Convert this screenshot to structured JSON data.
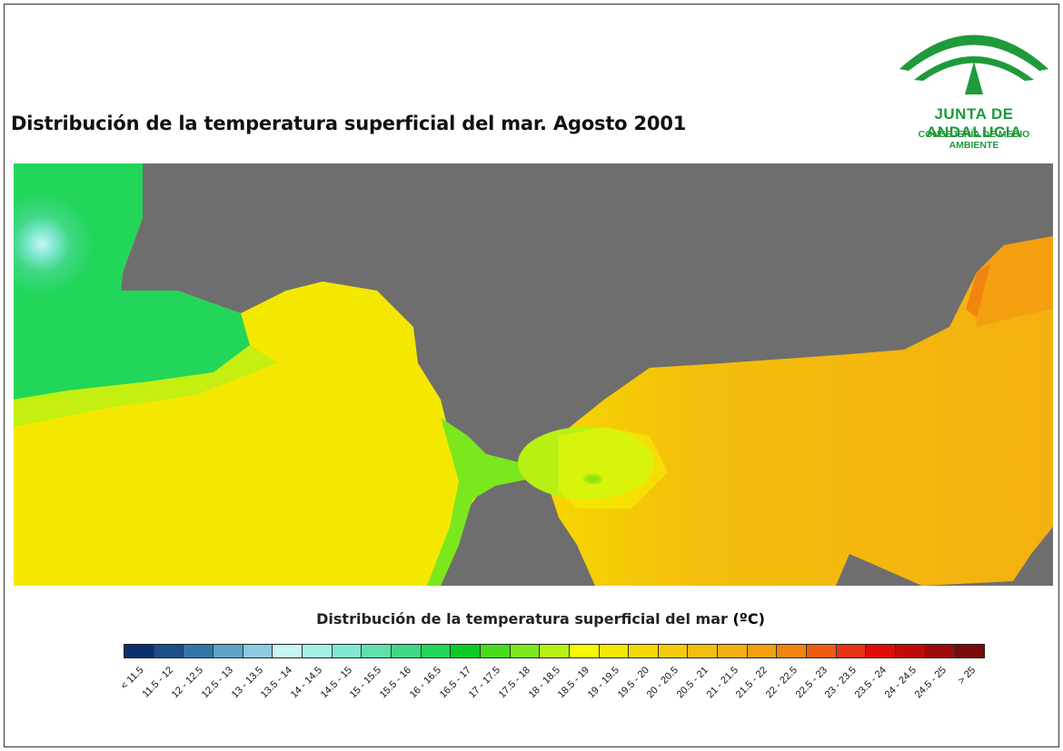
{
  "title": "Distribución de la temperatura superficial del mar. Agosto 2001",
  "logo": {
    "name": "JUNTA DE ANDALUCIA",
    "subtitle": "CONSEJERÍA DE MEDIO AMBIENTE",
    "color": "#1f9a3a"
  },
  "map": {
    "land_color": "#6e6e6e"
  },
  "legend": {
    "title": "Distribución de la temperatura superficial del mar",
    "unit": "(ºC)",
    "classes": [
      {
        "label": "< 11.5",
        "color": "#0b2f6b"
      },
      {
        "label": "11.5 - 12",
        "color": "#1a4f8a"
      },
      {
        "label": "12 - 12.5",
        "color": "#2f77a8"
      },
      {
        "label": "12.5 - 13",
        "color": "#5fa3c9"
      },
      {
        "label": "13 - 13.5",
        "color": "#8ccbe0"
      },
      {
        "label": "13.5 - 14",
        "color": "#c5f5f7"
      },
      {
        "label": "14 - 14.5",
        "color": "#a6efe6"
      },
      {
        "label": "14.5 - 15",
        "color": "#7fe8d0"
      },
      {
        "label": "15 - 15.5",
        "color": "#5fe0ad"
      },
      {
        "label": "15.5 - 16",
        "color": "#3fd884"
      },
      {
        "label": "16 - 16.5",
        "color": "#22d65a"
      },
      {
        "label": "16.5 - 17",
        "color": "#0acc22"
      },
      {
        "label": "17 - 17.5",
        "color": "#48dd1a"
      },
      {
        "label": "17.5 - 18",
        "color": "#7ae81c"
      },
      {
        "label": "18 - 18.5",
        "color": "#b8f014"
      },
      {
        "label": "18.5 - 19",
        "color": "#f8f800"
      },
      {
        "label": "19 - 19.5",
        "color": "#f5e800"
      },
      {
        "label": "19.5 - 20",
        "color": "#f5da00"
      },
      {
        "label": "20 - 20.5",
        "color": "#f5cc08"
      },
      {
        "label": "20.5 - 21",
        "color": "#f4bf0c"
      },
      {
        "label": "21 - 21.5",
        "color": "#f4b010"
      },
      {
        "label": "21.5 - 22",
        "color": "#f49f10"
      },
      {
        "label": "22 - 22.5",
        "color": "#f28410"
      },
      {
        "label": "22.5 - 23",
        "color": "#ee5c12"
      },
      {
        "label": "23 - 23.5",
        "color": "#e73214"
      },
      {
        "label": "23.5 - 24",
        "color": "#e00a0a"
      },
      {
        "label": "24 - 24.5",
        "color": "#c00a0a"
      },
      {
        "label": "24.5 - 25",
        "color": "#9e0a0a"
      },
      {
        "label": "> 25",
        "color": "#7a0a0a"
      }
    ]
  }
}
